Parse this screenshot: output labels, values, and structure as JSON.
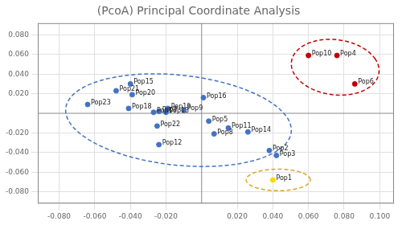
{
  "chart_data": {
    "type": "scatter",
    "title": "(PcoA) Principal Coordinate Analysis",
    "xlim": [
      -0.092,
      0.108
    ],
    "ylim": [
      -0.092,
      0.092
    ],
    "xticks": [
      {
        "value": -0.08,
        "label": "-0.080"
      },
      {
        "value": -0.06,
        "label": "-0.060"
      },
      {
        "value": -0.04,
        "label": "-0.040"
      },
      {
        "value": -0.02,
        "label": "-0.020"
      },
      {
        "value": 0.02,
        "label": "0.020"
      },
      {
        "value": 0.04,
        "label": "0.040"
      },
      {
        "value": 0.06,
        "label": "0.060"
      },
      {
        "value": 0.08,
        "label": "0.080"
      },
      {
        "value": 0.1,
        "label": "0.100"
      }
    ],
    "yticks": [
      {
        "value": 0.08,
        "label": "0.080"
      },
      {
        "value": 0.06,
        "label": "0.060"
      },
      {
        "value": 0.04,
        "label": "0.040"
      },
      {
        "value": 0.02,
        "label": "0.020"
      },
      {
        "value": -0.02,
        "label": "-0.020"
      },
      {
        "value": -0.04,
        "label": "-0.040"
      },
      {
        "value": -0.06,
        "label": "-0.060"
      },
      {
        "value": -0.08,
        "label": "-0.080"
      }
    ],
    "grid": true,
    "points": [
      {
        "name": "Pop1",
        "x": 0.04,
        "y": -0.068,
        "color": "#FFD700"
      },
      {
        "name": "Pop2",
        "x": 0.038,
        "y": -0.038,
        "color": "#4472C4"
      },
      {
        "name": "Pop3",
        "x": 0.042,
        "y": -0.043,
        "color": "#4472C4"
      },
      {
        "name": "Pop4",
        "x": 0.076,
        "y": 0.059,
        "color": "#C00000"
      },
      {
        "name": "Pop5",
        "x": 0.004,
        "y": -0.008,
        "color": "#4472C4"
      },
      {
        "name": "Pop6",
        "x": 0.086,
        "y": 0.03,
        "color": "#C00000"
      },
      {
        "name": "Pop7",
        "x": -0.024,
        "y": 0.002,
        "color": "#4472C4"
      },
      {
        "name": "Pop8",
        "x": 0.007,
        "y": -0.021,
        "color": "#4472C4"
      },
      {
        "name": "Pop9",
        "x": -0.01,
        "y": 0.003,
        "color": "#4472C4"
      },
      {
        "name": "Pop10",
        "x": 0.06,
        "y": 0.059,
        "color": "#C00000"
      },
      {
        "name": "Pop11",
        "x": 0.015,
        "y": -0.015,
        "color": "#4472C4"
      },
      {
        "name": "Pop12",
        "x": -0.024,
        "y": -0.032,
        "color": "#4472C4"
      },
      {
        "name": "Pop13",
        "x": -0.02,
        "y": 0.001,
        "color": "#4472C4"
      },
      {
        "name": "Pop14",
        "x": 0.026,
        "y": -0.019,
        "color": "#4472C4"
      },
      {
        "name": "Pop15",
        "x": -0.04,
        "y": 0.03,
        "color": "#4472C4"
      },
      {
        "name": "Pop16",
        "x": 0.001,
        "y": 0.016,
        "color": "#4472C4"
      },
      {
        "name": "Pop17",
        "x": -0.027,
        "y": 0.001,
        "color": "#4472C4"
      },
      {
        "name": "Pop18",
        "x": -0.041,
        "y": 0.005,
        "color": "#4472C4"
      },
      {
        "name": "Pop19",
        "x": -0.019,
        "y": 0.005,
        "color": "#4472C4"
      },
      {
        "name": "Pop20",
        "x": -0.039,
        "y": 0.019,
        "color": "#4472C4"
      },
      {
        "name": "Pop21",
        "x": -0.048,
        "y": 0.023,
        "color": "#4472C4"
      },
      {
        "name": "Pop22",
        "x": -0.025,
        "y": -0.013,
        "color": "#4472C4"
      },
      {
        "name": "Pop23",
        "x": -0.064,
        "y": 0.009,
        "color": "#4472C4"
      }
    ],
    "ellipses": [
      {
        "cx": -0.013,
        "cy": -0.007,
        "width": 0.13,
        "height": 0.09,
        "angle": -18,
        "color": "#4472C4",
        "line_style": "dashed"
      },
      {
        "cx": 0.075,
        "cy": 0.047,
        "width": 0.048,
        "height": 0.058,
        "angle": 20,
        "color": "#C00000",
        "line_style": "dashed"
      },
      {
        "cx": 0.043,
        "cy": -0.068,
        "width": 0.036,
        "height": 0.022,
        "angle": 0,
        "color": "#DAA520",
        "line_style": "dashed"
      }
    ]
  }
}
